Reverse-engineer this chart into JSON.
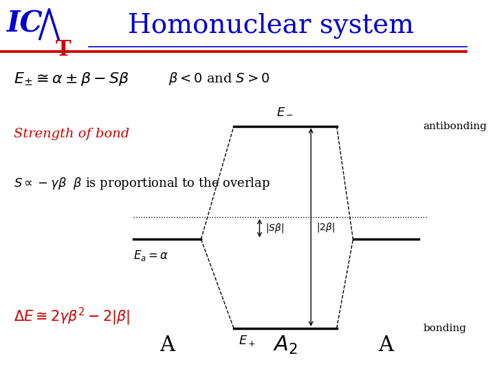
{
  "title": "Homonuclear system",
  "title_color": "#0000CD",
  "title_fontsize": 28,
  "background_color": "#FFFFFF",
  "logo_color_IC": "#0000CD",
  "logo_color_T": "#CC0000",
  "red_line_color": "#CC0000",
  "blue_line_color": "#0000CD",
  "formula_eq": "$E_{\\pm} \\cong \\alpha \\pm \\beta - S\\beta$",
  "formula_beta": "$\\beta < 0$ and $S > 0$",
  "strength_text": "Strength of bond",
  "strength_color": "#CC0000",
  "proportional_formula": "$S \\propto -\\gamma\\beta$",
  "proportional_text": "  $\\beta$ is proportional to the overlap",
  "delta_e_formula": "$\\Delta E \\cong 2\\gamma\\beta^2 - 2|\\beta|$",
  "delta_e_color": "#CC0000",
  "label_E_minus": "$E_-$",
  "label_E_plus": "$E_+$",
  "label_Ea": "$E_a = \\alpha$",
  "label_antibonding": "antibonding",
  "label_bonding": "bonding",
  "label_Sbeta": "$|S\\beta|$",
  "label_2beta": "$|2\\beta|$",
  "label_A_left": "A",
  "label_A2": "$A_2$",
  "label_A_right": "A"
}
